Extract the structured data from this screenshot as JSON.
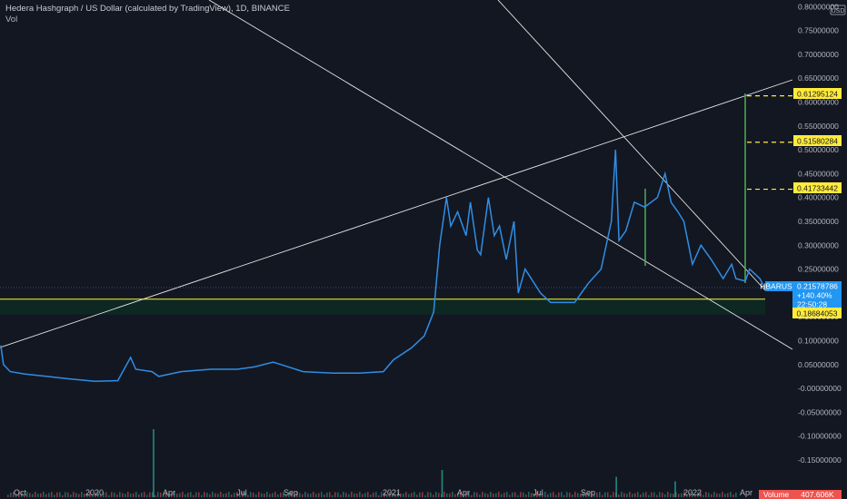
{
  "legend": {
    "title": "Hedera Hashgraph / US Dollar (calculated by TradingView), 1D, BINANCE",
    "vol_label": "Vol"
  },
  "currency_badge": "USD",
  "colors": {
    "background": "#131722",
    "price_line": "#2f8ee5",
    "trendline": "#e6e6e6",
    "projection": "#4caf50",
    "target_marker": "#ffeb3b",
    "symbol_tag": "#2196f3",
    "zone_fill": "#0d2a22",
    "volume_up": "#26a69a",
    "volume_down": "#ef5350"
  },
  "price_tag": {
    "symbol": "HBARUSD",
    "price": "0.21578786",
    "change": "+140.40%",
    "countdown": "22:50:28"
  },
  "support_tag": "0.18684053",
  "target_tags": [
    "0.61295124",
    "0.51580284",
    "0.41733442"
  ],
  "volume_tag": {
    "label": "Volume",
    "value": "407.606K"
  },
  "chart_data": {
    "type": "line",
    "title": "Hedera Hashgraph / US Dollar (calculated by TradingView), 1D, BINANCE",
    "xlabel": "",
    "ylabel": "",
    "x_tick_labels": [
      "Oct",
      "2020",
      "Apr",
      "Jul",
      "Sep",
      "2021",
      "Apr",
      "Jul",
      "Sep",
      "2022",
      "Apr"
    ],
    "y_tick_labels": [
      "0.80000000",
      "0.75000000",
      "0.70000000",
      "0.65000000",
      "0.60000000",
      "0.55000000",
      "0.50000000",
      "0.45000000",
      "0.40000000",
      "0.35000000",
      "0.30000000",
      "0.25000000",
      "0.20000000",
      "0.15000000",
      "0.10000000",
      "0.05000000",
      "-0.00000000",
      "-0.05000000",
      "-0.10000000",
      "-0.15000000"
    ],
    "ylim": [
      -0.19,
      0.81
    ],
    "xlim": [
      "2019-09-16",
      "2022-05-01"
    ],
    "grid": false,
    "series": [
      {
        "name": "HBARUSD",
        "x": [
          "2019-09-17",
          "2019-09-20",
          "2019-09-28",
          "2019-10-15",
          "2019-11-10",
          "2019-12-05",
          "2020-01-05",
          "2020-02-01",
          "2020-02-16",
          "2020-02-22",
          "2020-03-12",
          "2020-03-20",
          "2020-04-15",
          "2020-05-20",
          "2020-06-20",
          "2020-07-10",
          "2020-08-01",
          "2020-08-10",
          "2020-09-05",
          "2020-10-10",
          "2020-11-10",
          "2020-12-08",
          "2020-12-20",
          "2021-01-10",
          "2021-01-25",
          "2021-02-05",
          "2021-02-12",
          "2021-02-20",
          "2021-02-25",
          "2021-03-05",
          "2021-03-15",
          "2021-03-20",
          "2021-03-28",
          "2021-04-01",
          "2021-04-10",
          "2021-04-17",
          "2021-04-23",
          "2021-05-01",
          "2021-05-10",
          "2021-05-15",
          "2021-05-23",
          "2021-06-10",
          "2021-06-22",
          "2021-07-05",
          "2021-07-20",
          "2021-08-05",
          "2021-08-20",
          "2021-09-01",
          "2021-09-06",
          "2021-09-10",
          "2021-09-18",
          "2021-09-28",
          "2021-10-10",
          "2021-10-25",
          "2021-11-03",
          "2021-11-10",
          "2021-11-18",
          "2021-11-25",
          "2021-12-05",
          "2021-12-15",
          "2021-12-27",
          "2022-01-10",
          "2022-01-20",
          "2022-01-25",
          "2022-02-05",
          "2022-02-10",
          "2022-02-16",
          "2022-02-22",
          "2022-02-28",
          "2022-03-03"
        ],
        "values": [
          0.09,
          0.05,
          0.035,
          0.03,
          0.025,
          0.02,
          0.015,
          0.016,
          0.065,
          0.04,
          0.035,
          0.025,
          0.035,
          0.04,
          0.04,
          0.045,
          0.055,
          0.05,
          0.035,
          0.032,
          0.032,
          0.035,
          0.06,
          0.085,
          0.11,
          0.16,
          0.3,
          0.4,
          0.34,
          0.37,
          0.32,
          0.39,
          0.29,
          0.28,
          0.4,
          0.32,
          0.34,
          0.27,
          0.35,
          0.2,
          0.25,
          0.2,
          0.18,
          0.18,
          0.18,
          0.22,
          0.25,
          0.35,
          0.5,
          0.31,
          0.33,
          0.39,
          0.38,
          0.4,
          0.45,
          0.39,
          0.37,
          0.35,
          0.26,
          0.3,
          0.27,
          0.23,
          0.26,
          0.23,
          0.225,
          0.25,
          0.24,
          0.23,
          0.21,
          0.21
        ]
      }
    ],
    "annotations": {
      "targets": [
        0.61295124,
        0.51580284,
        0.41733442
      ],
      "support": 0.18684053,
      "support_zone": [
        0.155,
        0.19
      ],
      "last_price": 0.21578786,
      "change": "+140.40%"
    },
    "volume": {
      "label": "Volume",
      "last": "407.606K",
      "spikes": [
        {
          "x": "2020-03-13",
          "value": 3.0
        },
        {
          "x": "2021-02-14",
          "value": 1.2
        },
        {
          "x": "2021-09-06",
          "value": 0.9
        },
        {
          "x": "2021-11-14",
          "value": 0.7
        }
      ]
    }
  }
}
